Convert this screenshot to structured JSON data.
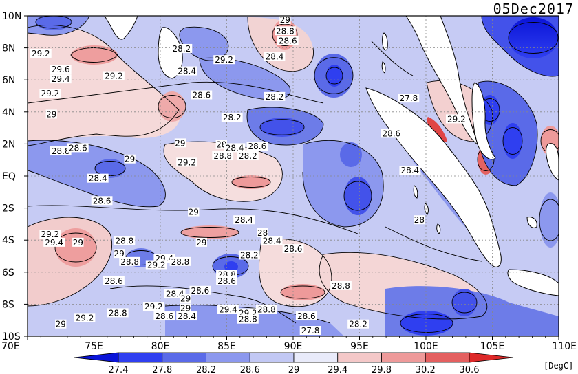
{
  "title_date": "05Dec2017",
  "units_label": "[DegC]",
  "x_ticks": [
    "70E",
    "75E",
    "80E",
    "85E",
    "90E",
    "95E",
    "100E",
    "105E",
    "110E"
  ],
  "y_ticks": [
    "10N",
    "8N",
    "6N",
    "4N",
    "2N",
    "EQ",
    "2S",
    "4S",
    "6S",
    "8S",
    "10S"
  ],
  "colorbar": {
    "ticks": [
      "27.4",
      "27.8",
      "28.2",
      "28.6",
      "29",
      "29.4",
      "29.8",
      "30.2",
      "30.6"
    ],
    "colors": [
      "#0a14d8",
      "#2f3ff0",
      "#5a6ae8",
      "#8c98ee",
      "#c2c8f4",
      "#e9ebfa",
      "#f4c8c8",
      "#ee9a9a",
      "#e46060",
      "#dd2828"
    ]
  },
  "contour_labels": [
    {
      "text": "29.2",
      "lon": 71.0,
      "lat": 7.6
    },
    {
      "text": "29.6",
      "lon": 72.5,
      "lat": 6.6
    },
    {
      "text": "29.4",
      "lon": 72.5,
      "lat": 6.0
    },
    {
      "text": "29.2",
      "lon": 71.7,
      "lat": 5.1
    },
    {
      "text": "29.2",
      "lon": 76.5,
      "lat": 6.2
    },
    {
      "text": "29",
      "lon": 71.8,
      "lat": 3.8
    },
    {
      "text": "28.2",
      "lon": 81.6,
      "lat": 7.9
    },
    {
      "text": "28.4",
      "lon": 82.0,
      "lat": 6.5
    },
    {
      "text": "29.2",
      "lon": 84.8,
      "lat": 7.2
    },
    {
      "text": "28.6",
      "lon": 83.1,
      "lat": 5.0
    },
    {
      "text": "29",
      "lon": 89.4,
      "lat": 9.7
    },
    {
      "text": "28.8",
      "lon": 89.4,
      "lat": 9.0
    },
    {
      "text": "28.6",
      "lon": 89.6,
      "lat": 8.4
    },
    {
      "text": "28.4",
      "lon": 88.6,
      "lat": 7.4
    },
    {
      "text": "28.2",
      "lon": 88.6,
      "lat": 4.9
    },
    {
      "text": "28.2",
      "lon": 85.4,
      "lat": 3.6
    },
    {
      "text": "29",
      "lon": 81.5,
      "lat": 2.0
    },
    {
      "text": "28",
      "lon": 84.6,
      "lat": 1.9
    },
    {
      "text": "28.4",
      "lon": 85.6,
      "lat": 1.7
    },
    {
      "text": "28.6",
      "lon": 87.3,
      "lat": 1.8
    },
    {
      "text": "28.8",
      "lon": 84.7,
      "lat": 1.2
    },
    {
      "text": "28.2",
      "lon": 86.6,
      "lat": 1.2
    },
    {
      "text": "29.2",
      "lon": 82.0,
      "lat": 0.8
    },
    {
      "text": "28.8",
      "lon": 72.5,
      "lat": 1.5
    },
    {
      "text": "28.6",
      "lon": 73.8,
      "lat": 1.7
    },
    {
      "text": "29",
      "lon": 77.7,
      "lat": 1.0
    },
    {
      "text": "28.4",
      "lon": 75.3,
      "lat": -0.2
    },
    {
      "text": "28.6",
      "lon": 75.6,
      "lat": -1.6
    },
    {
      "text": "29",
      "lon": 82.5,
      "lat": -2.3
    },
    {
      "text": "28.4",
      "lon": 86.3,
      "lat": -2.8
    },
    {
      "text": "28",
      "lon": 87.7,
      "lat": -3.6
    },
    {
      "text": "28.4",
      "lon": 88.4,
      "lat": -4.1
    },
    {
      "text": "28.6",
      "lon": 90.0,
      "lat": -4.6
    },
    {
      "text": "28.2",
      "lon": 86.7,
      "lat": -5.0
    },
    {
      "text": "29.2",
      "lon": 71.7,
      "lat": -3.7
    },
    {
      "text": "29.4",
      "lon": 72.0,
      "lat": -4.2
    },
    {
      "text": "29",
      "lon": 73.8,
      "lat": -4.2
    },
    {
      "text": "28.8",
      "lon": 77.3,
      "lat": -4.1
    },
    {
      "text": "29",
      "lon": 83.1,
      "lat": -4.2
    },
    {
      "text": "29",
      "lon": 76.9,
      "lat": -4.9
    },
    {
      "text": "28.8",
      "lon": 77.7,
      "lat": -5.4
    },
    {
      "text": "29.4",
      "lon": 80.3,
      "lat": -5.2
    },
    {
      "text": "29.2",
      "lon": 79.7,
      "lat": -5.6
    },
    {
      "text": "28.8",
      "lon": 81.5,
      "lat": -5.4
    },
    {
      "text": "28.6",
      "lon": 76.5,
      "lat": -6.6
    },
    {
      "text": "28.8",
      "lon": 85.0,
      "lat": -6.2
    },
    {
      "text": "28.6",
      "lon": 85.0,
      "lat": -6.6
    },
    {
      "text": "28.8",
      "lon": 93.6,
      "lat": -6.9
    },
    {
      "text": "28.6",
      "lon": 83.0,
      "lat": -7.2
    },
    {
      "text": "28.4",
      "lon": 81.1,
      "lat": -7.4
    },
    {
      "text": "29",
      "lon": 81.9,
      "lat": -7.7
    },
    {
      "text": "29.2",
      "lon": 79.5,
      "lat": -8.2
    },
    {
      "text": "29",
      "lon": 81.9,
      "lat": -8.3
    },
    {
      "text": "28.8",
      "lon": 76.8,
      "lat": -8.6
    },
    {
      "text": "28.6",
      "lon": 80.3,
      "lat": -8.8
    },
    {
      "text": "28.4",
      "lon": 82.0,
      "lat": -8.8
    },
    {
      "text": "29.2",
      "lon": 74.3,
      "lat": -8.9
    },
    {
      "text": "29",
      "lon": 72.5,
      "lat": -9.3
    },
    {
      "text": "29.4",
      "lon": 85.1,
      "lat": -8.4
    },
    {
      "text": "29.2",
      "lon": 86.6,
      "lat": -8.6
    },
    {
      "text": "28.8",
      "lon": 86.6,
      "lat": -9.0
    },
    {
      "text": "28.8",
      "lon": 88.0,
      "lat": -8.4
    },
    {
      "text": "28.6",
      "lon": 91.0,
      "lat": -8.8
    },
    {
      "text": "27.8",
      "lon": 91.3,
      "lat": -9.7
    },
    {
      "text": "28.2",
      "lon": 94.9,
      "lat": -9.3
    },
    {
      "text": "27.8",
      "lon": 98.7,
      "lat": 4.8
    },
    {
      "text": "28.6",
      "lon": 97.4,
      "lat": 2.6
    },
    {
      "text": "29.2",
      "lon": 102.3,
      "lat": 3.5
    },
    {
      "text": "28.4",
      "lon": 98.8,
      "lat": 0.3
    },
    {
      "text": "28",
      "lon": 99.5,
      "lat": -2.8
    }
  ]
}
